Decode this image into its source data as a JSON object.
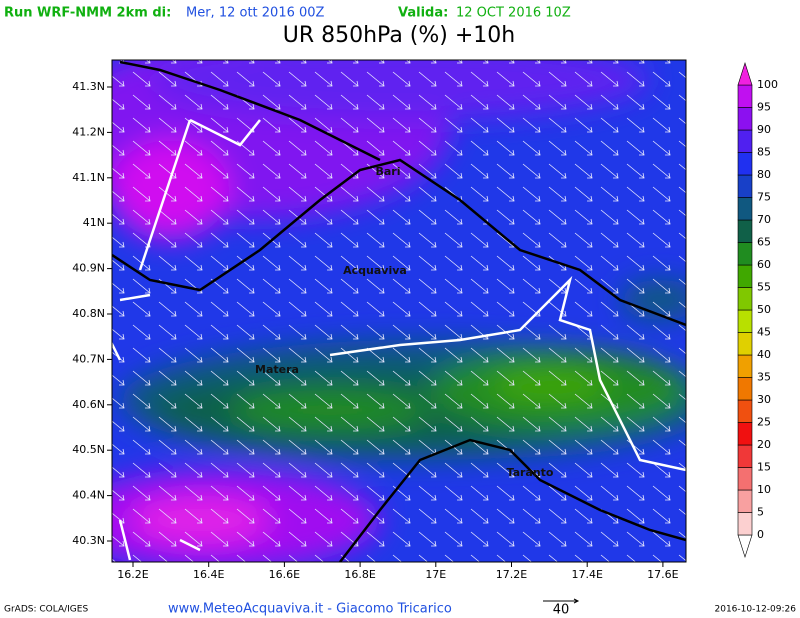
{
  "header": {
    "run_label": "Run WRF-NMM 2km di:",
    "run_date": "Mer, 12 ott 2016 00Z",
    "valid_label": "Valida:",
    "valid_date": "12 OCT 2016 10Z",
    "title": "UR 850hPa (%) +10h"
  },
  "map": {
    "lon_labels": [
      "16.2E",
      "16.4E",
      "16.6E",
      "16.8E",
      "17E",
      "17.2E",
      "17.4E",
      "17.6E"
    ],
    "lat_labels": [
      "41.3N",
      "41.2N",
      "41.1N",
      "41N",
      "40.9N",
      "40.8N",
      "40.7N",
      "40.6N",
      "40.5N",
      "40.4N",
      "40.3N"
    ],
    "cities": [
      "Bari",
      "Acquaviva",
      "Matera",
      "Taranto"
    ]
  },
  "colorbar": {
    "levels": [
      0,
      5,
      10,
      15,
      20,
      25,
      30,
      35,
      40,
      45,
      50,
      55,
      60,
      65,
      70,
      75,
      80,
      85,
      90,
      95,
      100
    ],
    "colors": [
      "#ffffff",
      "#fcd0d0",
      "#f8a0a0",
      "#f47070",
      "#f03838",
      "#f01010",
      "#f05010",
      "#f07800",
      "#f0a000",
      "#e0d000",
      "#b8e000",
      "#80c800",
      "#40a800",
      "#208c20",
      "#106048",
      "#105880",
      "#1840c8",
      "#2030f0",
      "#5020f0",
      "#8c10f0",
      "#c010f0",
      "#f020e0"
    ]
  },
  "footer": {
    "credit": "GrADS: COLA/IGES",
    "site": "www.MeteoAcquaviva.it - Giacomo Tricarico",
    "vector_scale": "40",
    "timestamp": "2016-10-12-09:26"
  }
}
